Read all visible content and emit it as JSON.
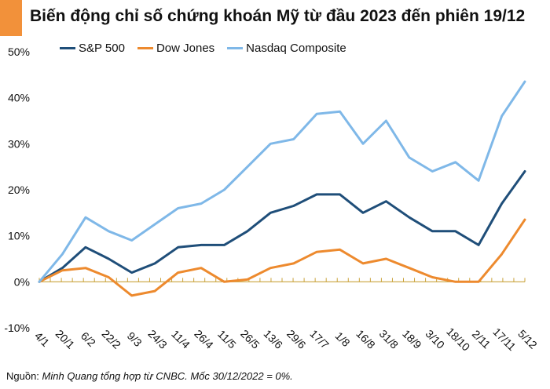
{
  "title": "Biến động chỉ số chứng khoán Mỹ từ đầu 2023 đến phiên 19/12",
  "source_prefix": "Nguồn: ",
  "source_text": "Minh Quang tổng hợp từ CNBC. Mốc 30/12/2022 = 0%.",
  "colors": {
    "accent": "#f2913a",
    "sp500": "#1f4e79",
    "dow": "#ed8a2e",
    "nasdaq": "#7fb8e8"
  },
  "chart_data": {
    "type": "line",
    "x": [
      "4/1",
      "20/1",
      "6/2",
      "22/2",
      "9/3",
      "24/3",
      "11/4",
      "26/4",
      "11/5",
      "26/5",
      "13/6",
      "29/6",
      "17/7",
      "1/8",
      "16/8",
      "31/8",
      "18/9",
      "3/10",
      "18/10",
      "2/11",
      "17/11",
      "5/12"
    ],
    "ylim": [
      -10,
      50
    ],
    "yticks": [
      -10,
      0,
      10,
      20,
      30,
      40,
      50
    ],
    "ytick_labels": [
      "-10%",
      "0%",
      "10%",
      "20%",
      "30%",
      "40%",
      "50%"
    ],
    "legend_position": "top-left",
    "grid": false,
    "series": [
      {
        "name": "S&P 500",
        "color": "#1f4e79",
        "values": [
          0,
          3,
          7.5,
          5,
          2,
          4,
          7.5,
          8,
          8,
          11,
          15,
          16.5,
          19,
          19,
          15,
          17.5,
          14,
          11,
          11,
          8,
          17,
          24
        ]
      },
      {
        "name": "Dow Jones",
        "color": "#ed8a2e",
        "values": [
          0,
          2.5,
          3,
          1,
          -3,
          -2,
          2,
          3,
          0,
          0.5,
          3,
          4,
          6.5,
          7,
          4,
          5,
          3,
          1,
          0,
          0,
          6,
          13.5
        ]
      },
      {
        "name": "Nasdaq Composite",
        "color": "#7fb8e8",
        "values": [
          0,
          6,
          14,
          11,
          9,
          12.5,
          16,
          17,
          20,
          25,
          30,
          31,
          36.5,
          37,
          30,
          35,
          27,
          24,
          26,
          22,
          36,
          43.5
        ]
      }
    ]
  }
}
